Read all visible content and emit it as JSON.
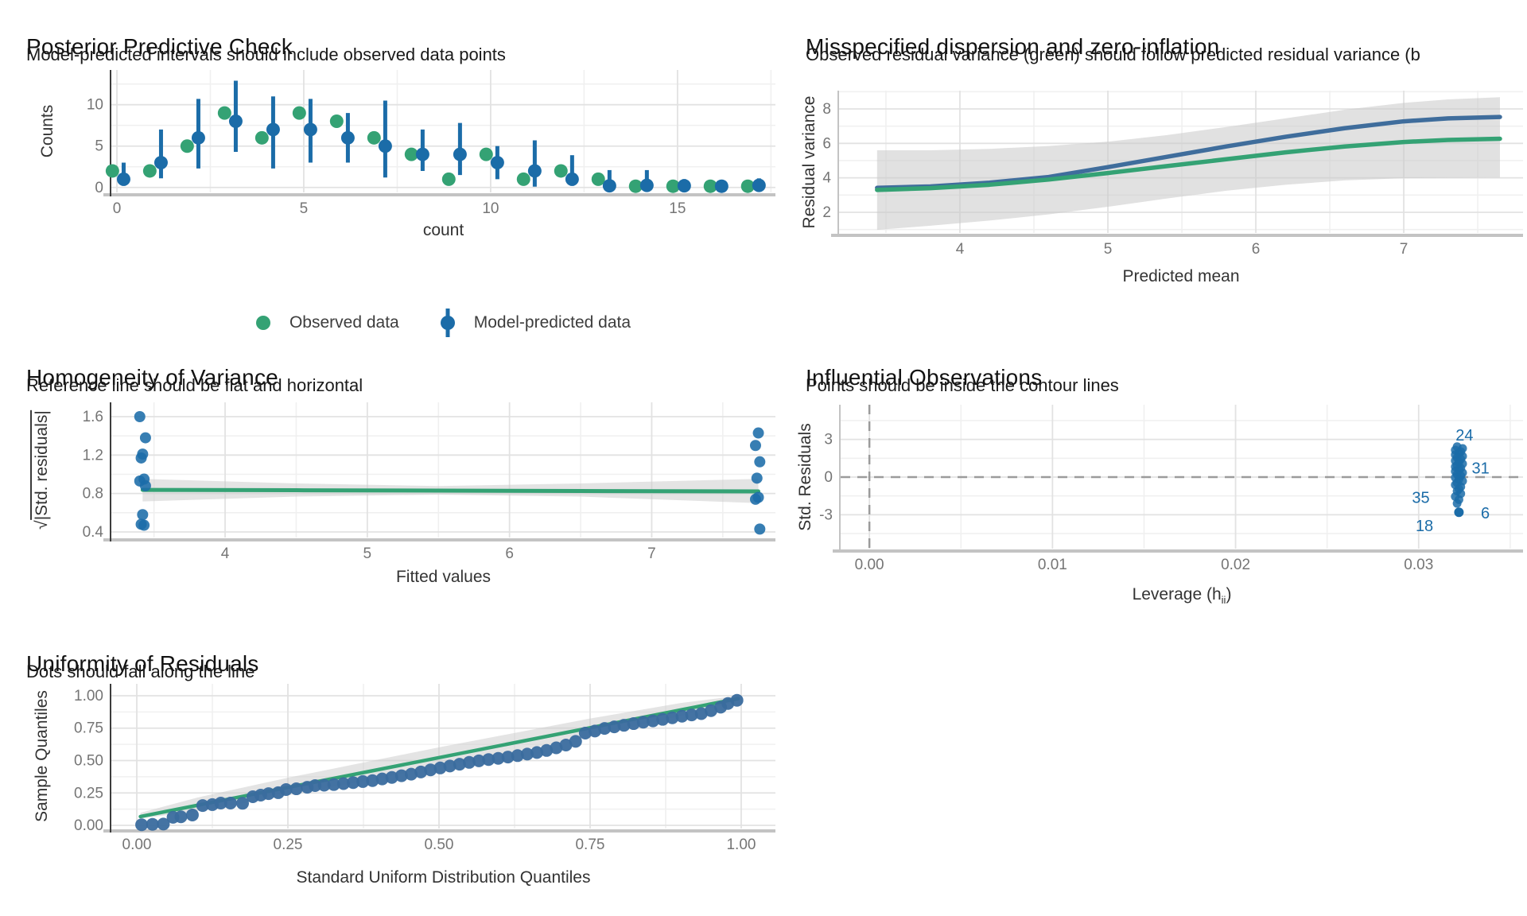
{
  "colors": {
    "observed_green": "#34a274",
    "predicted_blue": "#1b6ca8",
    "line_blue": "#3f6d9c",
    "dot_blue": "#3a6b9e",
    "ribbon": "#c9c9c9",
    "grid_major": "#e2e2e2",
    "grid_minor": "#f0f0f0",
    "axis_line": "#c3c3c3",
    "axis_dark": "#3c3c3c",
    "tick_text": "#757575",
    "label_text": "#333333",
    "ref_dash": "#9b9b9b"
  },
  "chart_data": [
    {
      "type": "pointrange",
      "title": "Posterior Predictive Check",
      "subtitle": "Model-predicted intervals should include observed data points",
      "xlabel": "count",
      "ylabel": "Counts",
      "xlim": [
        -0.149,
        17.62
      ],
      "ylim": [
        -0.6,
        14.2
      ],
      "xticks": [
        0,
        5,
        10,
        15
      ],
      "yticks": [
        0,
        5,
        10
      ],
      "xminor": [
        2.5,
        7.5,
        12.5,
        17.5
      ],
      "yminor": [
        2.5,
        7.5,
        12.5
      ],
      "axis_left_dark": true,
      "legend": [
        {
          "label": "Observed data",
          "color": "#34a274",
          "glyph": "point"
        },
        {
          "label": "Model-predicted data",
          "color": "#1b6ca8",
          "glyph": "pointrange"
        }
      ],
      "series": [
        {
          "name": "Observed data",
          "type": "points",
          "dx": -0.12,
          "r": 8.5,
          "color": "#34a274",
          "x": [
            0,
            1,
            2,
            3,
            4,
            5,
            6,
            7,
            8,
            9,
            10,
            11,
            12,
            13,
            14,
            15,
            16,
            17
          ],
          "y": [
            2,
            2,
            5,
            9,
            6,
            9,
            8,
            6,
            4,
            1,
            4,
            1,
            2,
            1,
            0.15,
            0.15,
            0.15,
            0.15
          ]
        },
        {
          "name": "Model-predicted data",
          "type": "pointrange",
          "dx": 0.18,
          "r": 8.5,
          "lw": 5,
          "color": "#1b6ca8",
          "x": [
            0,
            1,
            2,
            3,
            4,
            5,
            6,
            7,
            8,
            9,
            10,
            11,
            12,
            13,
            14,
            15,
            16,
            17
          ],
          "y": [
            1,
            3,
            6,
            8,
            7,
            7,
            6,
            5,
            4,
            4,
            3,
            2,
            1,
            0.2,
            0.25,
            0.2,
            0.15,
            0.25
          ],
          "lo": [
            0.2,
            1.1,
            2.3,
            4.3,
            2.3,
            3,
            3,
            1.2,
            2,
            1.5,
            1,
            0.1,
            0.2,
            0,
            0,
            0,
            0,
            0
          ],
          "hi": [
            3,
            7,
            10.7,
            12.9,
            11,
            10.7,
            9,
            10.5,
            7,
            7.8,
            5,
            5.7,
            3.9,
            2.1,
            2.1,
            1,
            0.55,
            1.1
          ]
        }
      ]
    },
    {
      "type": "line",
      "title": "Misspecified dispersion and zero-inflation",
      "subtitle": "Observed residual variance (green) should follow predicted residual variance (b",
      "xlabel": "Predicted mean",
      "ylabel": "Residual variance",
      "xlim": [
        3.183,
        7.806
      ],
      "ylim": [
        0.8,
        9.06
      ],
      "xticks": [
        4,
        5,
        6,
        7
      ],
      "yticks": [
        2,
        4,
        6,
        8
      ],
      "xminor": [
        3.5,
        4.5,
        5.5,
        6.5,
        7.5
      ],
      "yminor": [
        1,
        3,
        5,
        7,
        9
      ],
      "axis_left_dark": false,
      "series": [
        {
          "name": "confidence band",
          "type": "ribbon",
          "opacity": 0.55,
          "x": [
            3.44,
            3.8,
            4.2,
            4.6,
            5.0,
            5.4,
            5.8,
            6.2,
            6.6,
            7.0,
            7.3,
            7.65
          ],
          "hi": [
            5.6,
            5.6,
            5.68,
            5.85,
            6.1,
            6.48,
            6.95,
            7.45,
            7.95,
            8.35,
            8.55,
            8.68
          ],
          "lo": [
            0.98,
            1.22,
            1.52,
            1.88,
            2.32,
            2.8,
            3.25,
            3.6,
            3.85,
            3.98,
            4.0,
            4.02
          ]
        },
        {
          "name": "predicted residual variance",
          "type": "line",
          "color": "#3f6d9c",
          "width": 5.5,
          "x": [
            3.44,
            3.8,
            4.2,
            4.6,
            5.0,
            5.4,
            5.8,
            6.2,
            6.6,
            7.0,
            7.3,
            7.65
          ],
          "y": [
            3.42,
            3.5,
            3.72,
            4.05,
            4.62,
            5.22,
            5.82,
            6.38,
            6.88,
            7.28,
            7.45,
            7.53
          ]
        },
        {
          "name": "observed residual variance",
          "type": "line",
          "color": "#34a274",
          "width": 5.5,
          "x": [
            3.44,
            3.8,
            4.2,
            4.6,
            5.0,
            5.4,
            5.8,
            6.2,
            6.6,
            7.0,
            7.3,
            7.65
          ],
          "y": [
            3.3,
            3.4,
            3.6,
            3.9,
            4.28,
            4.68,
            5.08,
            5.48,
            5.82,
            6.08,
            6.2,
            6.27
          ]
        }
      ]
    },
    {
      "type": "scatter",
      "title": "Homogeneity of Variance",
      "subtitle": "Reference line should be flat and horizontal",
      "xlabel": "Fitted values",
      "ylabel_prefix": "√",
      "ylabel": "|Std. residuals|",
      "xlim": [
        3.2,
        7.87
      ],
      "ylim": [
        0.342,
        1.749
      ],
      "xticks": [
        4,
        5,
        6,
        7
      ],
      "yticks": [
        0.4,
        0.8,
        1.2,
        1.6
      ],
      "ytick_labels": [
        "0.4",
        "0.8",
        "1.2",
        "1.6"
      ],
      "xminor": [
        3.5,
        4.5,
        5.5,
        6.5,
        7.5
      ],
      "yminor": [
        0.6,
        1.0,
        1.4
      ],
      "axis_left_dark": true,
      "series": [
        {
          "name": "confidence band",
          "type": "ribbon",
          "opacity": 0.5,
          "x": [
            3.42,
            4.5,
            5.5,
            6.5,
            7.75
          ],
          "hi": [
            0.952,
            0.905,
            0.878,
            0.905,
            0.952
          ],
          "lo": [
            0.718,
            0.768,
            0.788,
            0.768,
            0.7
          ]
        },
        {
          "name": "reference line",
          "type": "line",
          "color": "#34a274",
          "width": 5,
          "x": [
            3.42,
            4.5,
            5.5,
            6.5,
            7.75
          ],
          "y": [
            0.838,
            0.834,
            0.83,
            0.826,
            0.822
          ]
        },
        {
          "name": "std residual points",
          "type": "points",
          "r": 7,
          "opacity": 0.88,
          "color": "#1b6ca8",
          "x": [
            3.4,
            3.44,
            3.42,
            3.41,
            3.43,
            3.4,
            3.44,
            3.42,
            3.41,
            3.43,
            7.75,
            7.73,
            7.76,
            7.74,
            7.75,
            7.73,
            7.76
          ],
          "y": [
            1.6,
            1.38,
            1.21,
            1.17,
            0.95,
            0.93,
            0.88,
            0.58,
            0.48,
            0.47,
            1.43,
            1.3,
            1.13,
            0.96,
            0.76,
            0.74,
            0.43
          ]
        }
      ]
    },
    {
      "type": "scatter",
      "title": "Influential Observations",
      "subtitle": "Points should be inside the contour lines",
      "xlabel_pre": "Leverage (h",
      "xlabel_sub": "ii",
      "xlabel_post": ")",
      "ylabel": "Std. Residuals",
      "xlim": [
        -0.00157,
        0.0357
      ],
      "ylim": [
        -5.7,
        5.76
      ],
      "xticks": [
        0,
        0.01,
        0.02,
        0.03
      ],
      "xtick_labels": [
        "0.00",
        "0.01",
        "0.02",
        "0.03"
      ],
      "yticks": [
        -3,
        0,
        3
      ],
      "ytick_labels": [
        "-3",
        "0",
        "3"
      ],
      "xminor": [
        0.005,
        0.015,
        0.025,
        0.035
      ],
      "yminor": [
        -4.5,
        -1.5,
        1.5,
        4.5
      ],
      "axis_left_dark": false,
      "series": [
        {
          "name": "zero residual reference",
          "type": "hline",
          "y": 0
        },
        {
          "name": "zero leverage reference",
          "type": "vline",
          "x": 0
        },
        {
          "name": "observation points",
          "type": "points",
          "r": 5.5,
          "opacity": 0.85,
          "color": "#1b6ca8",
          "x": [
            0.0321,
            0.0324,
            0.032,
            0.0323,
            0.0322,
            0.032,
            0.0324,
            0.0321,
            0.0323,
            0.032,
            0.0322,
            0.0324,
            0.0321,
            0.032,
            0.0323,
            0.0322,
            0.032,
            0.0324,
            0.0321,
            0.0323,
            0.032,
            0.0322,
            0.0324,
            0.0321,
            0.032,
            0.0323,
            0.0322,
            0.0321,
            0.0323,
            0.032,
            0.0322,
            0.0321
          ],
          "y": [
            2.42,
            2.28,
            2.15,
            2.02,
            1.9,
            1.78,
            1.66,
            1.54,
            1.42,
            1.3,
            1.18,
            1.06,
            0.94,
            0.82,
            0.7,
            0.58,
            0.46,
            0.34,
            0.22,
            0.1,
            -0.04,
            -0.18,
            -0.32,
            -0.46,
            -0.62,
            -0.78,
            -0.95,
            -1.12,
            -1.32,
            -1.55,
            -1.8,
            -2.1
          ]
        },
        {
          "name": "outlier point",
          "type": "points",
          "r": 6,
          "opacity": 1,
          "color": "#1b6ca8",
          "x": [
            0.0322
          ],
          "y": [
            -2.8
          ]
        },
        {
          "name": "point labels",
          "type": "labels",
          "x": [
            0.0325,
            0.0329,
            0.0306,
            0.0334,
            0.0308
          ],
          "y": [
            3.35,
            0.72,
            -1.62,
            -2.85,
            -3.85
          ],
          "anchor": [
            "middle",
            "start",
            "end",
            "start",
            "end"
          ],
          "text": [
            "24",
            "31",
            "35",
            "6",
            "18"
          ]
        }
      ]
    },
    {
      "type": "scatter",
      "title": "Uniformity of Residuals",
      "subtitle": "Dots should fall along the line",
      "xlabel": "Standard Uniform Distribution Quantiles",
      "ylabel": "Sample Quantiles",
      "xlim": [
        -0.0421,
        1.0566
      ],
      "ylim": [
        -0.0245,
        1.092
      ],
      "xticks": [
        0,
        0.25,
        0.5,
        0.75,
        1
      ],
      "xtick_labels": [
        "0.00",
        "0.25",
        "0.50",
        "0.75",
        "1.00"
      ],
      "yticks": [
        0,
        0.25,
        0.5,
        0.75,
        1
      ],
      "ytick_labels": [
        "0.00",
        "0.25",
        "0.50",
        "0.75",
        "1.00"
      ],
      "xminor": [
        0.125,
        0.375,
        0.625,
        0.875
      ],
      "yminor": [
        0.125,
        0.375,
        0.625,
        0.875
      ],
      "axis_left_dark": true,
      "series": [
        {
          "name": "confidence band",
          "type": "ribbon",
          "opacity": 0.5,
          "x": [
            0.006,
            0.1,
            0.25,
            0.5,
            0.75,
            0.9,
            0.995
          ],
          "hi": [
            0.097,
            0.214,
            0.367,
            0.602,
            0.824,
            0.944,
            1.0
          ],
          "lo": [
            0.053,
            0.11,
            0.231,
            0.454,
            0.688,
            0.844,
            0.96
          ]
        },
        {
          "name": "reference line",
          "type": "line",
          "color": "#34a274",
          "width": 4.5,
          "x": [
            0.006,
            0.995
          ],
          "y": [
            0.068,
            0.978
          ]
        },
        {
          "name": "quantile points",
          "type": "points",
          "r": 8,
          "opacity": 0.95,
          "color": "#3a6b9e",
          "x": [
            0.008,
            0.026,
            0.044,
            0.06,
            0.073,
            0.092,
            0.109,
            0.125,
            0.139,
            0.155,
            0.175,
            0.192,
            0.205,
            0.218,
            0.234,
            0.247,
            0.264,
            0.282,
            0.295,
            0.31,
            0.326,
            0.342,
            0.358,
            0.374,
            0.39,
            0.406,
            0.422,
            0.438,
            0.454,
            0.47,
            0.486,
            0.502,
            0.518,
            0.534,
            0.55,
            0.566,
            0.582,
            0.598,
            0.614,
            0.63,
            0.646,
            0.662,
            0.678,
            0.694,
            0.71,
            0.726,
            0.742,
            0.758,
            0.774,
            0.79,
            0.806,
            0.822,
            0.838,
            0.854,
            0.87,
            0.886,
            0.902,
            0.918,
            0.934,
            0.95,
            0.966,
            0.978,
            0.993
          ],
          "y": [
            0.005,
            0.008,
            0.01,
            0.062,
            0.066,
            0.08,
            0.153,
            0.16,
            0.172,
            0.172,
            0.17,
            0.221,
            0.233,
            0.245,
            0.252,
            0.276,
            0.282,
            0.294,
            0.307,
            0.31,
            0.315,
            0.322,
            0.33,
            0.338,
            0.345,
            0.358,
            0.37,
            0.383,
            0.395,
            0.412,
            0.428,
            0.443,
            0.458,
            0.472,
            0.486,
            0.498,
            0.508,
            0.517,
            0.527,
            0.538,
            0.55,
            0.562,
            0.578,
            0.598,
            0.62,
            0.648,
            0.712,
            0.728,
            0.748,
            0.76,
            0.772,
            0.785,
            0.796,
            0.806,
            0.818,
            0.83,
            0.842,
            0.852,
            0.862,
            0.885,
            0.912,
            0.94,
            0.965
          ]
        }
      ]
    }
  ]
}
